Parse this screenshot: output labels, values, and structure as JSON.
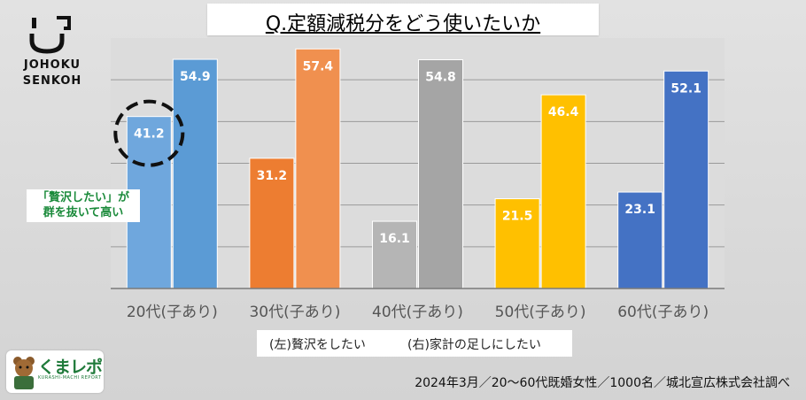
{
  "title": "Q.定額減税分をどう使いたいか",
  "logo": {
    "line1": "JOHOKU",
    "line2": "SENKOH"
  },
  "annotation": {
    "line1": "「贅沢したい」が",
    "line2": "群を抜いて高い"
  },
  "legend": {
    "left": "(左)贅沢をしたい",
    "right": "(右)家計の足しにしたい"
  },
  "source": "2024年3月／20～60代既婚女性／1000名／城北宣広株式会社調べ",
  "kuma": {
    "title": "くまレポ",
    "subtitle": "KURASHI-MACHI REPORT"
  },
  "chart_data": {
    "type": "bar",
    "categories": [
      "20代(子あり)",
      "30代(子あり)",
      "40代(子あり)",
      "50代(子あり)",
      "60代(子あり)"
    ],
    "series": [
      {
        "name": "(左)贅沢をしたい",
        "values": [
          41.2,
          31.2,
          16.1,
          21.5,
          23.1
        ]
      },
      {
        "name": "(右)家計の足しにしたい",
        "values": [
          54.9,
          57.4,
          54.8,
          46.4,
          52.1
        ]
      }
    ],
    "ylim": [
      0,
      60
    ],
    "grid": true,
    "legend": "bottom",
    "colors": [
      {
        "left": "#6fa7dd",
        "right": "#5b9bd5"
      },
      {
        "left": "#ed7d31",
        "right": "#f0904f"
      },
      {
        "left": "#b5b5b5",
        "right": "#a5a5a5"
      },
      {
        "left": "#ffc000",
        "right": "#ffc000"
      },
      {
        "left": "#4472c4",
        "right": "#4472c4"
      }
    ],
    "highlight": {
      "category": "20代(子あり)",
      "series": "(左)贅沢をしたい"
    }
  }
}
